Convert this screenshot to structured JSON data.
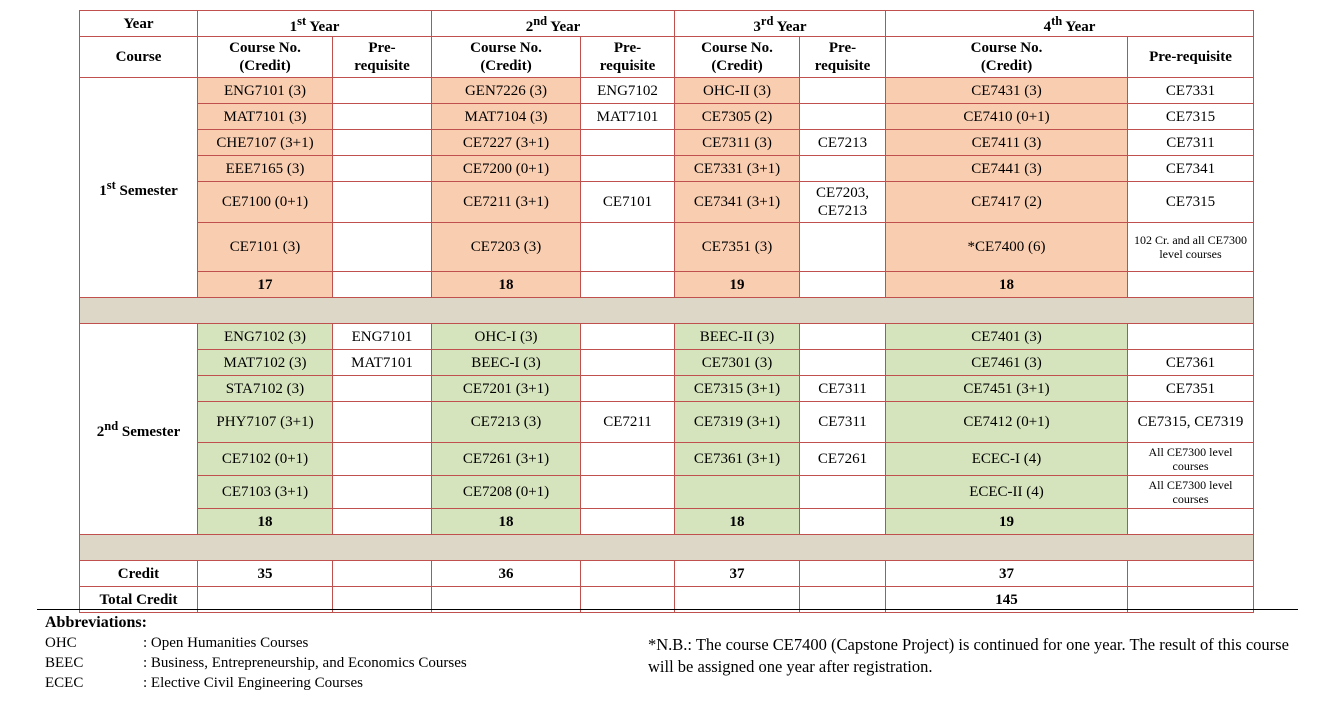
{
  "header": {
    "year": "Year",
    "course": "Course",
    "years": [
      {
        "num": "1",
        "sup": "st",
        "word": " Year"
      },
      {
        "num": "2",
        "sup": "nd",
        "word": " Year"
      },
      {
        "num": "3",
        "sup": "rd",
        "word": " Year"
      },
      {
        "num": "4",
        "sup": "th",
        "word": " Year"
      }
    ],
    "course_no_line1": "Course No.",
    "course_no_line2": "(Credit)",
    "prereq_line1": "Pre-",
    "prereq_line2": "requisite",
    "prereq_full": "Pre-requisite"
  },
  "semesters": [
    {
      "num": "1",
      "sup": "st",
      "word": " Semester",
      "rows": [
        [
          "ENG7101 (3)",
          "",
          "GEN7226 (3)",
          "ENG7102",
          "OHC-II (3)",
          "",
          "CE7431 (3)",
          "CE7331"
        ],
        [
          "MAT7101 (3)",
          "",
          "MAT7104 (3)",
          "MAT7101",
          "CE7305 (2)",
          "",
          "CE7410 (0+1)",
          "CE7315"
        ],
        [
          "CHE7107 (3+1)",
          "",
          "CE7227 (3+1)",
          "",
          "CE7311 (3)",
          "CE7213",
          "CE7411 (3)",
          "CE7311"
        ],
        [
          "EEE7165 (3)",
          "",
          "CE7200 (0+1)",
          "",
          "CE7331 (3+1)",
          "",
          "CE7441 (3)",
          "CE7341"
        ],
        [
          "CE7100 (0+1)",
          "",
          "CE7211 (3+1)",
          "CE7101",
          "CE7341 (3+1)",
          "CE7203, CE7213",
          "CE7417 (2)",
          "CE7315"
        ],
        [
          "CE7101 (3)",
          "",
          "CE7203 (3)",
          "",
          "CE7351 (3)",
          "",
          "*CE7400 (6)",
          "102 Cr. and all CE7300 level courses"
        ]
      ],
      "totals": [
        "17",
        "18",
        "19",
        "18"
      ]
    },
    {
      "num": "2",
      "sup": "nd",
      "word": " Semester",
      "rows": [
        [
          "ENG7102 (3)",
          "ENG7101",
          "OHC-I (3)",
          "",
          "BEEC-II (3)",
          "",
          "CE7401 (3)",
          ""
        ],
        [
          "MAT7102 (3)",
          "MAT7101",
          "BEEC-I (3)",
          "",
          "CE7301 (3)",
          "",
          "CE7461 (3)",
          "CE7361"
        ],
        [
          "STA7102 (3)",
          "",
          "CE7201 (3+1)",
          "",
          "CE7315 (3+1)",
          "CE7311",
          "CE7451 (3+1)",
          "CE7351"
        ],
        [
          "PHY7107 (3+1)",
          "",
          "CE7213 (3)",
          "CE7211",
          "CE7319 (3+1)",
          "CE7311",
          "CE7412 (0+1)",
          "CE7315, CE7319"
        ],
        [
          "CE7102 (0+1)",
          "",
          "CE7261 (3+1)",
          "",
          "CE7361 (3+1)",
          "CE7261",
          "ECEC-I (4)",
          "All CE7300 level courses"
        ],
        [
          "CE7103 (3+1)",
          "",
          "CE7208 (0+1)",
          "",
          "",
          "",
          "ECEC-II (4)",
          "All CE7300 level courses"
        ]
      ],
      "totals": [
        "18",
        "18",
        "18",
        "19"
      ]
    }
  ],
  "credit": {
    "label": "Credit",
    "values": [
      "35",
      "36",
      "37",
      "37"
    ]
  },
  "total_credit": {
    "label": "Total Credit",
    "value": "145"
  },
  "abbreviations": {
    "title": "Abbreviations:",
    "items": [
      {
        "key": "OHC",
        "value": ": Open Humanities Courses"
      },
      {
        "key": "BEEC",
        "value": ": Business, Entrepreneurship, and Economics Courses"
      },
      {
        "key": "ECEC",
        "value": ": Elective Civil Engineering Courses"
      }
    ]
  },
  "note": "*N.B.: The course CE7400 (Capstone Project) is continued for one year. The result of this course will be assigned one year after registration.",
  "colors": {
    "orange": "#f9cdb0",
    "green": "#d6e4bd",
    "separator": "#dcd7c7",
    "border": "#c0504d"
  }
}
